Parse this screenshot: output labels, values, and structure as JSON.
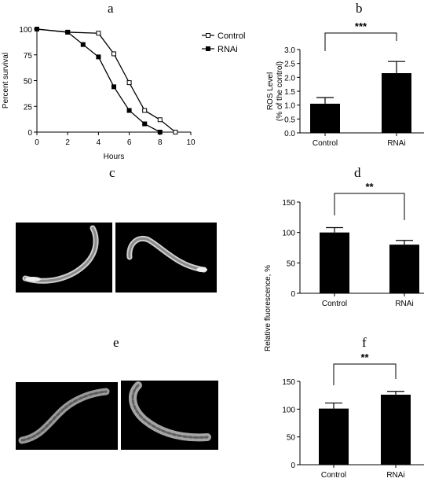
{
  "panels": {
    "a": "a",
    "b": "b",
    "c": "c",
    "d": "d",
    "e": "e",
    "f": "f"
  },
  "chart_data": [
    {
      "id": "a",
      "type": "line",
      "title": "",
      "xlabel": "Hours",
      "ylabel": "Percent survival",
      "xlim": [
        0,
        10
      ],
      "ylim": [
        0,
        100
      ],
      "xticks": [
        "0",
        "2",
        "4",
        "6",
        "8",
        "10"
      ],
      "yticks": [
        "0",
        "25",
        "50",
        "75",
        "100"
      ],
      "legend_position": "top-right",
      "series": [
        {
          "name": "Control",
          "marker": "open-square",
          "x": [
            0,
            2,
            4,
            5,
            6,
            7,
            8,
            9
          ],
          "y": [
            100,
            97,
            96,
            76,
            48,
            21,
            12,
            0
          ]
        },
        {
          "name": "RNAi",
          "marker": "filled-square",
          "x": [
            0,
            2,
            3,
            4,
            5,
            6,
            7,
            8
          ],
          "y": [
            100,
            97,
            85,
            73,
            44,
            21,
            8,
            0
          ]
        }
      ]
    },
    {
      "id": "b",
      "type": "bar",
      "categories": [
        "Control",
        "RNAi"
      ],
      "values": [
        1.05,
        2.15
      ],
      "errors": [
        0.22,
        0.42
      ],
      "ylabel_line1": "ROS Level",
      "ylabel_line2": "(% of the control)",
      "ylim": [
        0,
        3.0
      ],
      "yticks": [
        "0.0",
        "0.5",
        "1.0",
        "1.5",
        "2.0",
        "2.5",
        "3.0"
      ],
      "significance": "***"
    },
    {
      "id": "d",
      "type": "bar",
      "categories": [
        "Control",
        "RNAi"
      ],
      "values": [
        100,
        80
      ],
      "errors": [
        8,
        7
      ],
      "ylabel": "Relative fluorescence, %",
      "ylim": [
        0,
        150
      ],
      "yticks": [
        "0",
        "50",
        "100",
        "150"
      ],
      "significance": "**"
    },
    {
      "id": "f",
      "type": "bar",
      "categories": [
        "Control",
        "RNAi"
      ],
      "values": [
        101,
        126
      ],
      "errors": [
        10,
        6
      ],
      "ylabel": "",
      "ylim": [
        0,
        150
      ],
      "yticks": [
        "0",
        "50",
        "100",
        "150"
      ],
      "significance": "**"
    }
  ]
}
